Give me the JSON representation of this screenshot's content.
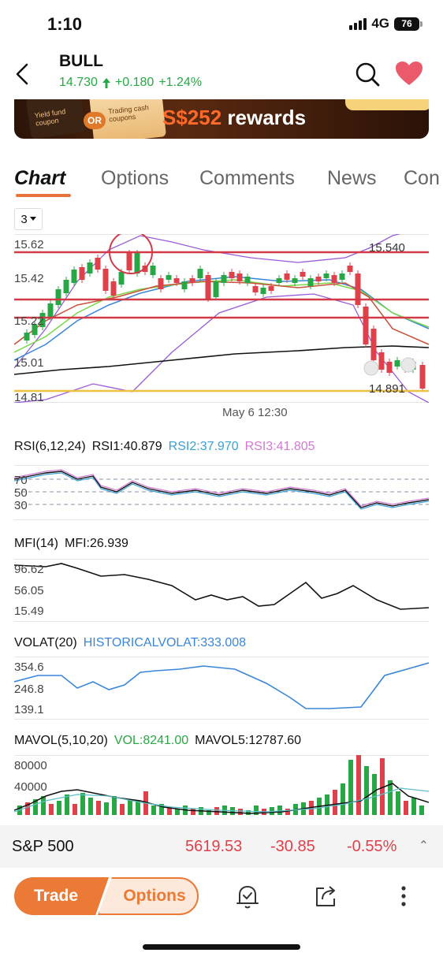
{
  "status": {
    "time": "1:10",
    "network": "4G",
    "battery": "76"
  },
  "header": {
    "ticker": "BULL",
    "price": "14.730",
    "change": "+0.180",
    "change_pct": "+1.24%"
  },
  "banner": {
    "coupon1_text": "Yield fund coupon",
    "or_text": "OR",
    "coupon2_text": "Trading cash coupons",
    "reward_amount": "S$252",
    "reward_text": "rewards"
  },
  "tabs": [
    "Chart",
    "Options",
    "Comments",
    "News",
    "Con"
  ],
  "period": "3",
  "main_chart": {
    "y_labels": [
      "15.62",
      "15.42",
      "15.22",
      "15.01",
      "14.81"
    ],
    "high_label": "15.540",
    "low_label": "14.891",
    "date_label": "May 6 12:30",
    "colors": {
      "up": "#27a844",
      "down": "#e0404a",
      "level_line": "#d23a48",
      "support_line": "#f0c040"
    }
  },
  "rsi": {
    "title": "RSI(6,12,24)",
    "rsi1": "RSI1:40.879",
    "rsi2": "RSI2:37.970",
    "rsi3": "RSI3:41.805",
    "levels": [
      "70",
      "50",
      "30"
    ]
  },
  "mfi": {
    "title": "MFI(14)",
    "value": "MFI:26.939",
    "levels": [
      "96.62",
      "56.05",
      "15.49"
    ]
  },
  "volat": {
    "title": "VOLAT(20)",
    "value": "HISTORICALVOLAT:333.008",
    "levels": [
      "354.6",
      "246.8",
      "139.1"
    ]
  },
  "mavol": {
    "title": "MAVOL(5,10,20)",
    "vol": "VOL:8241.00",
    "mavol5": "MAVOL5:12787.60",
    "levels": [
      "80000",
      "40000"
    ]
  },
  "index_bar": {
    "name": "S&P 500",
    "value": "5619.53",
    "change": "-30.85",
    "change_pct": "-0.55%"
  },
  "bottom": {
    "trade_label": "Trade",
    "options_label": "Options"
  }
}
